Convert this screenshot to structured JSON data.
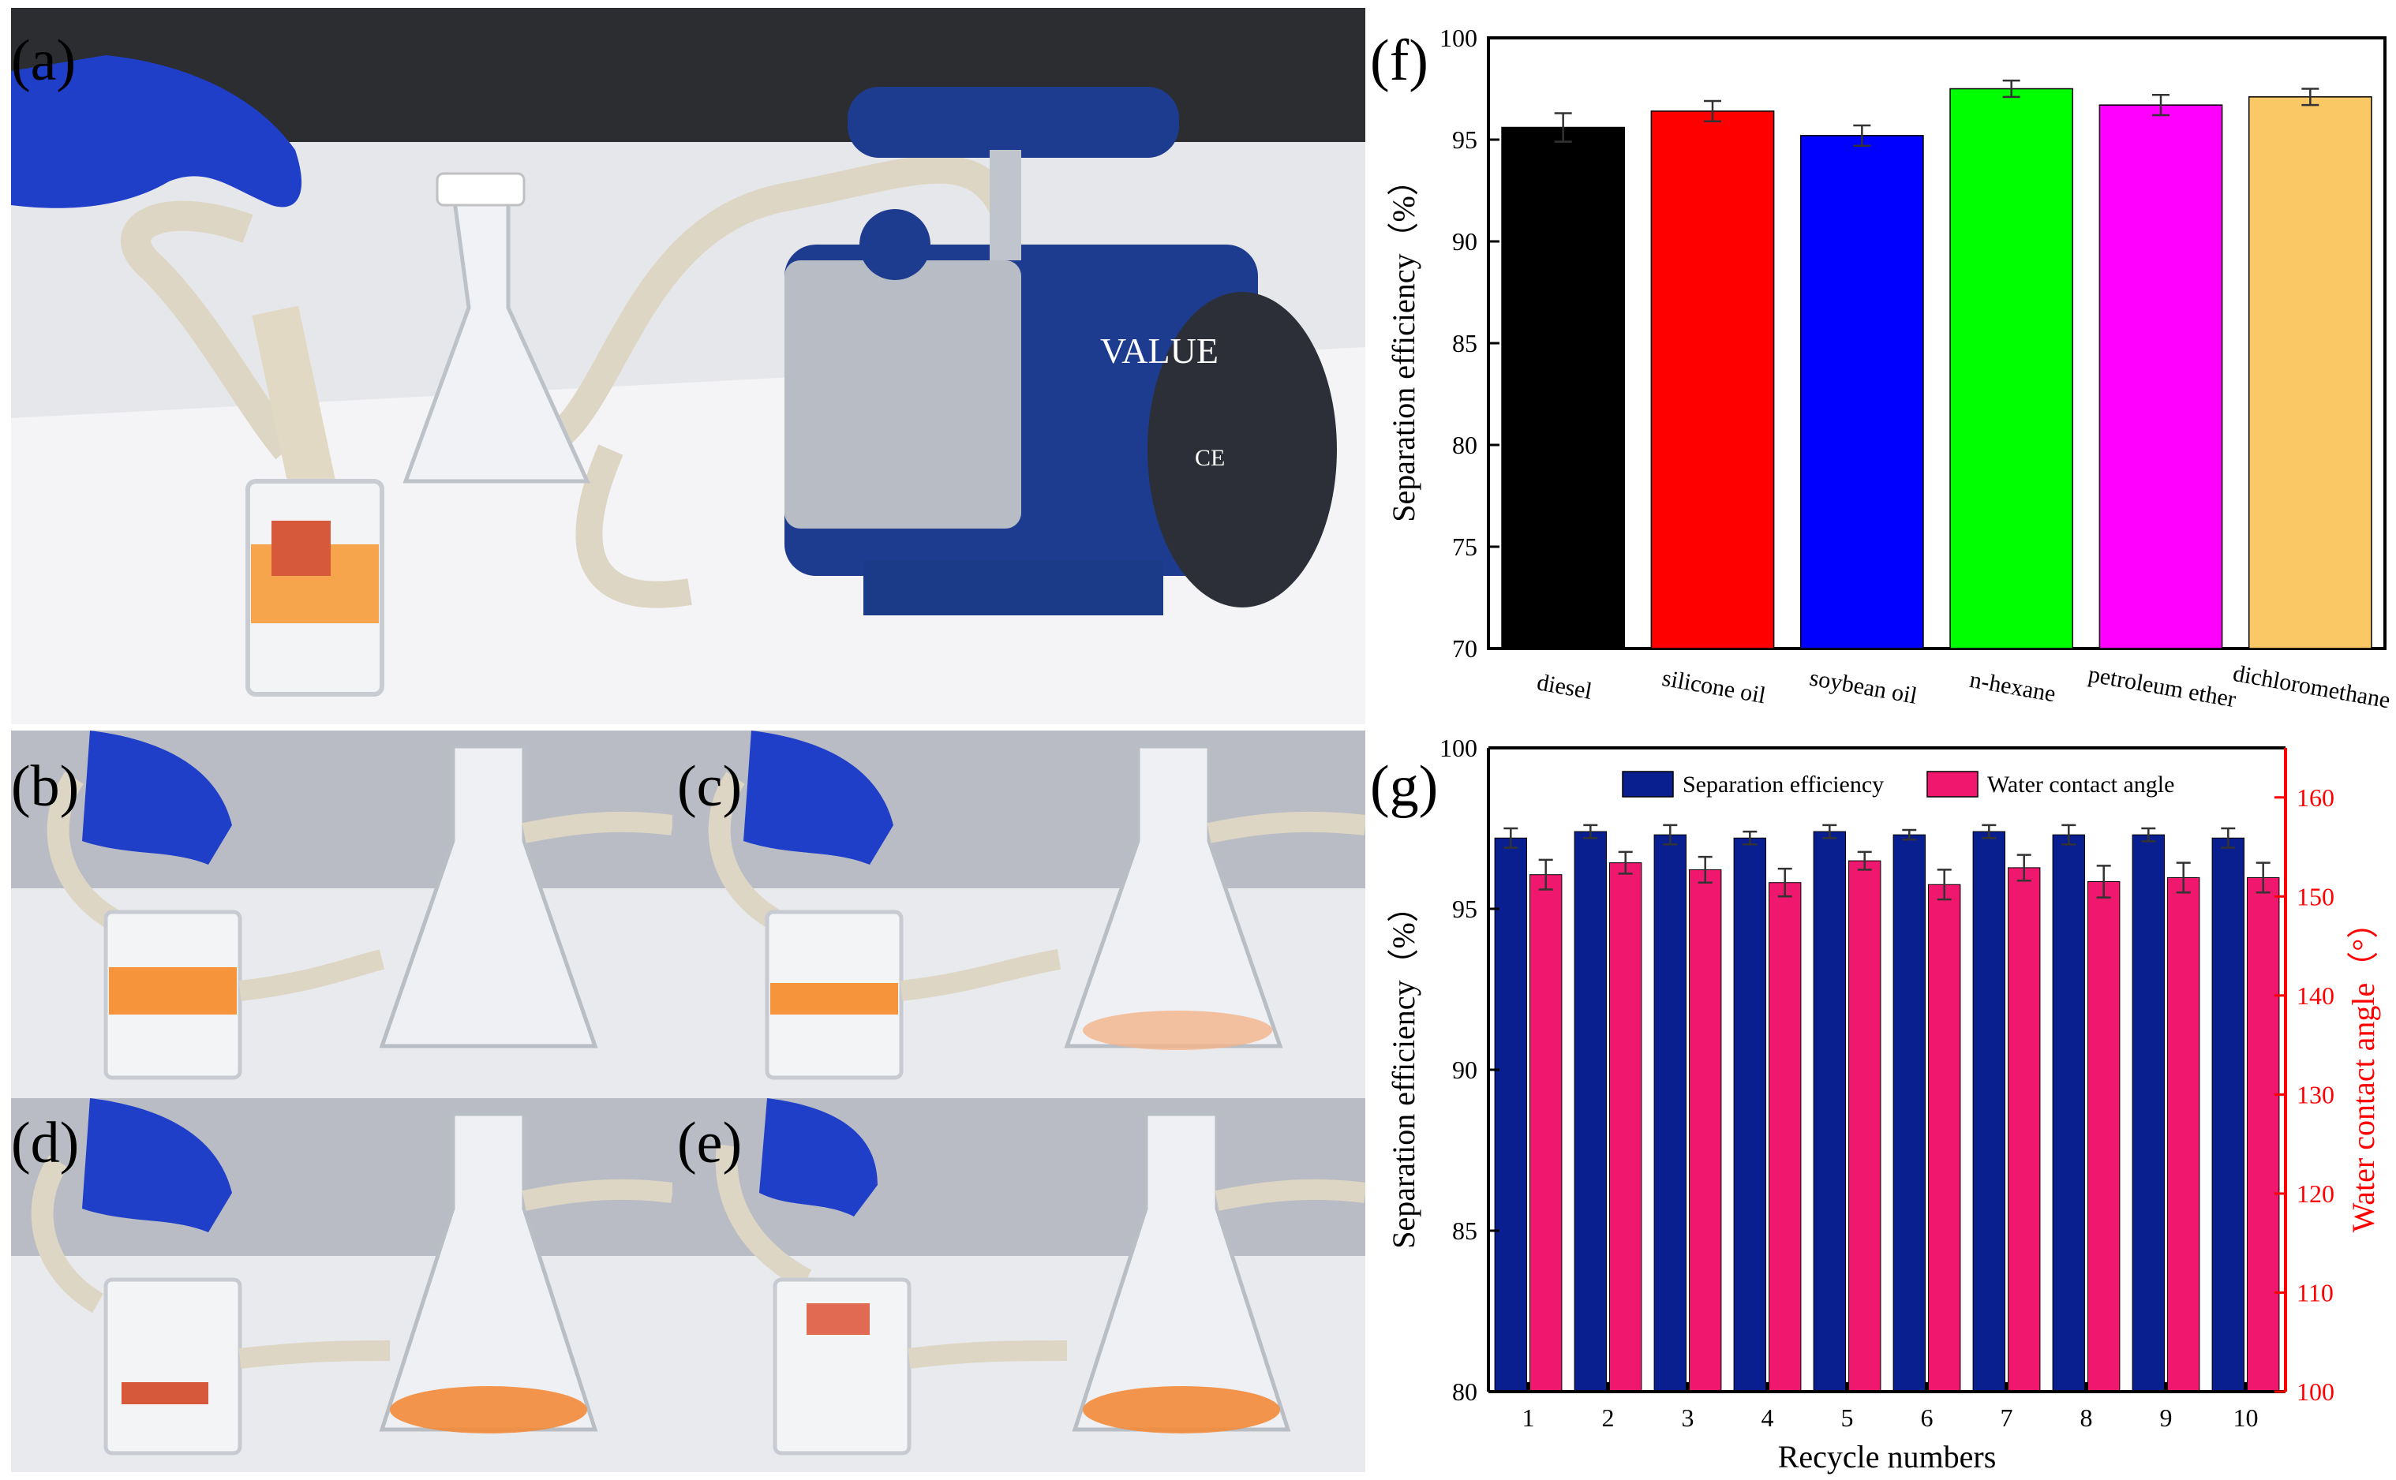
{
  "panels": {
    "a": "(a)",
    "b": "(b)",
    "c": "(c)",
    "d": "(d)",
    "e": "(e)",
    "f": "(f)",
    "g": "(g)"
  },
  "photos": {
    "pump_brand": "VALUE",
    "pump_label": "CE"
  },
  "chart_data": [
    {
      "id": "f",
      "type": "bar",
      "title": "",
      "xlabel": "",
      "ylabel": "Separation efficiency（%）",
      "ylim": [
        70,
        100
      ],
      "yticks": [
        70,
        75,
        80,
        85,
        90,
        95,
        100
      ],
      "categories": [
        "diesel",
        "silicone oil",
        "soybean oil",
        "n-hexane",
        "petroleum ether",
        "dichloromethane"
      ],
      "values": [
        95.6,
        96.4,
        95.2,
        97.5,
        96.7,
        97.1
      ],
      "errors": [
        0.7,
        0.5,
        0.5,
        0.4,
        0.5,
        0.4
      ],
      "colors": [
        "#000000",
        "#ff0000",
        "#0000ff",
        "#00ff00",
        "#ff00ff",
        "#fac864"
      ],
      "grid": false
    },
    {
      "id": "g",
      "type": "bar",
      "title": "",
      "xlabel": "Recycle numbers",
      "ylabel": "Separation efficiency（%）",
      "y2label": "Water contact angle（°）",
      "ylim": [
        80,
        100
      ],
      "yticks": [
        80,
        85,
        90,
        95,
        100
      ],
      "y2lim": [
        100,
        165
      ],
      "y2ticks": [
        100,
        110,
        120,
        130,
        140,
        150,
        160
      ],
      "categories": [
        "1",
        "2",
        "3",
        "4",
        "5",
        "6",
        "7",
        "8",
        "9",
        "10"
      ],
      "legend_position": "top",
      "grid": false,
      "series": [
        {
          "name": "Separation efficiency",
          "axis": "left",
          "color": "#0a1f8f",
          "values": [
            97.2,
            97.4,
            97.3,
            97.2,
            97.4,
            97.3,
            97.4,
            97.3,
            97.3,
            97.2
          ],
          "errors": [
            0.3,
            0.2,
            0.3,
            0.2,
            0.2,
            0.15,
            0.2,
            0.3,
            0.2,
            0.3
          ]
        },
        {
          "name": "Water contact angle",
          "axis": "right",
          "color": "#f0176e",
          "values": [
            152.2,
            153.4,
            152.7,
            151.4,
            153.6,
            151.2,
            152.9,
            151.5,
            151.9,
            151.9
          ],
          "errors": [
            1.5,
            1.1,
            1.3,
            1.4,
            0.9,
            1.5,
            1.3,
            1.6,
            1.5,
            1.5
          ]
        }
      ]
    }
  ]
}
